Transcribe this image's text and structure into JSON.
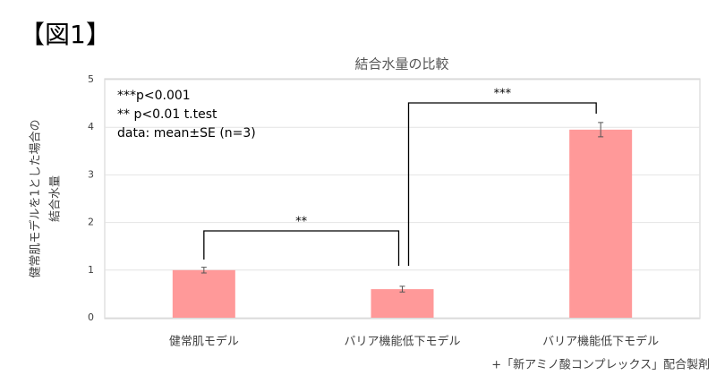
{
  "figure_label": "【図1】",
  "chart_data": {
    "type": "bar",
    "title": "結合水量の比較",
    "y_label": [
      "健常肌モデルを1とした場合の",
      "結合水量"
    ],
    "categories": [
      [
        "健常肌モデル"
      ],
      [
        "バリア機能低下モデル"
      ],
      [
        "バリア機能低下モデル",
        "+「新アミノ酸コンプレックス」配合製剤"
      ]
    ],
    "values": [
      1.0,
      0.6,
      3.95
    ],
    "errors": [
      0.06,
      0.06,
      0.15
    ],
    "color": "#ff9999",
    "error_color": "#555555",
    "ylim": [
      0,
      5
    ],
    "yticks": [
      0,
      1,
      2,
      3,
      4,
      5
    ],
    "grid": true,
    "annotations": [
      "***p<0.001",
      "** p<0.01  t.test",
      "data: mean±SE (n=3)"
    ],
    "significance_labels": [
      "**",
      "***"
    ]
  }
}
